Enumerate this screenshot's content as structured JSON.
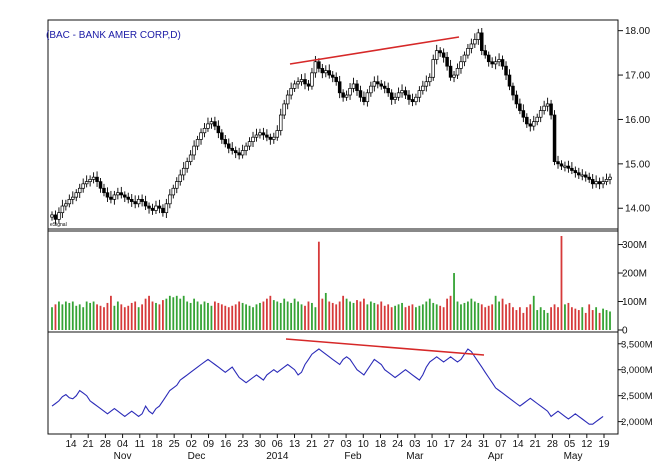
{
  "chart_data": [
    {
      "type": "candlestick",
      "title": "(BAC - BANK AMER CORP,D)",
      "watermark": "eSignal",
      "y_ticks": [
        "14.00",
        "15.00",
        "16.00",
        "17.00",
        "18.00"
      ],
      "ylim": [
        13.6,
        18.15
      ],
      "close_approx": [
        13.85,
        13.75,
        13.9,
        14.05,
        14.1,
        14.2,
        14.25,
        14.35,
        14.45,
        14.55,
        14.6,
        14.65,
        14.7,
        14.6,
        14.45,
        14.35,
        14.25,
        14.2,
        14.3,
        14.35,
        14.3,
        14.25,
        14.2,
        14.15,
        14.1,
        14.2,
        14.15,
        14.05,
        14.0,
        13.95,
        14.05,
        14.0,
        13.9,
        14.1,
        14.3,
        14.45,
        14.6,
        14.75,
        14.9,
        15.05,
        15.2,
        15.4,
        15.55,
        15.7,
        15.8,
        15.9,
        15.95,
        15.85,
        15.7,
        15.55,
        15.45,
        15.35,
        15.3,
        15.25,
        15.2,
        15.3,
        15.4,
        15.5,
        15.6,
        15.65,
        15.7,
        15.65,
        15.6,
        15.55,
        15.6,
        15.75,
        16.1,
        16.35,
        16.55,
        16.7,
        16.8,
        16.85,
        16.9,
        16.8,
        16.75,
        17.05,
        17.3,
        17.15,
        17.05,
        17.1,
        17.0,
        16.95,
        16.85,
        16.6,
        16.5,
        16.55,
        16.7,
        16.8,
        16.65,
        16.5,
        16.4,
        16.6,
        16.75,
        16.85,
        16.8,
        16.75,
        16.7,
        16.6,
        16.45,
        16.5,
        16.6,
        16.65,
        16.55,
        16.45,
        16.4,
        16.5,
        16.65,
        16.75,
        16.85,
        16.95,
        17.35,
        17.55,
        17.5,
        17.4,
        17.2,
        16.95,
        17.0,
        17.15,
        17.3,
        17.45,
        17.6,
        17.7,
        17.8,
        17.95,
        17.55,
        17.45,
        17.3,
        17.25,
        17.3,
        17.35,
        17.2,
        17.0,
        16.75,
        16.55,
        16.35,
        16.2,
        16.05,
        15.9,
        15.85,
        15.95,
        16.05,
        16.2,
        16.3,
        16.35,
        16.1,
        15.05,
        15.0,
        14.95,
        14.95,
        14.9,
        14.85,
        14.8,
        14.75,
        14.75,
        14.7,
        14.65,
        14.55,
        14.6,
        14.55,
        14.6,
        14.65,
        14.7
      ]
    },
    {
      "type": "bar",
      "y_ticks": [
        "0",
        "100M",
        "200M",
        "300M"
      ],
      "ylim": [
        0,
        330
      ],
      "colors": {
        "up": "#35a335",
        "down": "#d63a3a"
      },
      "values": [
        80,
        90,
        100,
        90,
        100,
        95,
        100,
        85,
        90,
        80,
        100,
        95,
        100,
        90,
        85,
        80,
        95,
        120,
        85,
        100,
        90,
        80,
        85,
        95,
        100,
        80,
        90,
        110,
        120,
        100,
        95,
        90,
        105,
        110,
        120,
        115,
        120,
        110,
        120,
        100,
        95,
        110,
        100,
        90,
        100,
        95,
        85,
        100,
        95,
        90,
        85,
        80,
        85,
        90,
        100,
        95,
        90,
        85,
        80,
        90,
        95,
        100,
        110,
        120,
        105,
        100,
        95,
        110,
        100,
        95,
        110,
        100,
        90,
        85,
        100,
        95,
        80,
        310,
        110,
        130,
        100,
        95,
        90,
        100,
        120,
        110,
        100,
        95,
        105,
        100,
        110,
        90,
        100,
        95,
        90,
        100,
        85,
        90,
        80,
        85,
        90,
        95,
        80,
        85,
        90,
        80,
        85,
        90,
        100,
        110,
        95,
        90,
        85,
        80,
        110,
        120,
        200,
        100,
        90,
        95,
        100,
        110,
        100,
        95,
        90,
        80,
        85,
        90,
        120,
        100,
        110,
        90,
        95,
        80,
        70,
        80,
        60,
        80,
        90,
        120,
        70,
        80,
        70,
        60,
        80,
        90,
        80,
        330,
        90,
        95,
        80,
        75,
        70,
        80,
        60,
        90,
        70,
        80,
        60,
        75,
        70,
        65,
        80
      ]
    },
    {
      "type": "line",
      "y_ticks": [
        "2,000M",
        "2,500M",
        "3,000M",
        "3,500M"
      ],
      "ylim": [
        1800,
        3650
      ],
      "color": "#2b2bb8",
      "values": [
        2300,
        2350,
        2400,
        2480,
        2520,
        2460,
        2440,
        2500,
        2600,
        2550,
        2500,
        2400,
        2350,
        2300,
        2250,
        2200,
        2150,
        2200,
        2250,
        2200,
        2150,
        2100,
        2150,
        2200,
        2150,
        2100,
        2150,
        2300,
        2200,
        2150,
        2250,
        2300,
        2400,
        2500,
        2600,
        2650,
        2700,
        2800,
        2850,
        2900,
        2950,
        3000,
        3050,
        3100,
        3150,
        3200,
        3150,
        3100,
        3050,
        3000,
        2950,
        3000,
        3050,
        2950,
        2850,
        2800,
        2750,
        2800,
        2850,
        2900,
        2850,
        2800,
        2900,
        2950,
        3000,
        2950,
        3000,
        3050,
        3100,
        3050,
        3000,
        2900,
        2950,
        3100,
        3200,
        3300,
        3350,
        3400,
        3350,
        3300,
        3250,
        3200,
        3150,
        3100,
        3200,
        3250,
        3200,
        3100,
        3000,
        2950,
        2900,
        3000,
        3100,
        3200,
        3150,
        3100,
        3000,
        2950,
        2900,
        2850,
        2900,
        2950,
        3000,
        2950,
        2900,
        2850,
        2800,
        2900,
        3050,
        3150,
        3200,
        3250,
        3200,
        3150,
        3200,
        3250,
        3200,
        3150,
        3200,
        3300,
        3400,
        3350,
        3250,
        3150,
        3050,
        2950,
        2850,
        2750,
        2650,
        2600,
        2550,
        2500,
        2450,
        2400,
        2350,
        2300,
        2350,
        2400,
        2450,
        2400,
        2350,
        2300,
        2250,
        2200,
        2100,
        2150,
        2200,
        2150,
        2100,
        2050,
        2100,
        2150,
        2100,
        2050,
        2000,
        1950,
        1950,
        2000,
        2050,
        2100
      ]
    }
  ],
  "x_axis": {
    "tick_labels": [
      "14",
      "21",
      "28",
      "04",
      "11",
      "18",
      "25",
      "02",
      "09",
      "16",
      "23",
      "30",
      "06",
      "13",
      "21",
      "27",
      "03",
      "10",
      "18",
      "24",
      "03",
      "10",
      "17",
      "24",
      "31",
      "07",
      "14",
      "21",
      "28",
      "05",
      "12",
      "19"
    ],
    "month_labels": [
      "Nov",
      "Dec",
      "2014",
      "Feb",
      "Mar",
      "Apr",
      "May"
    ]
  },
  "annotations": {
    "trendline_color": "#d62828"
  }
}
